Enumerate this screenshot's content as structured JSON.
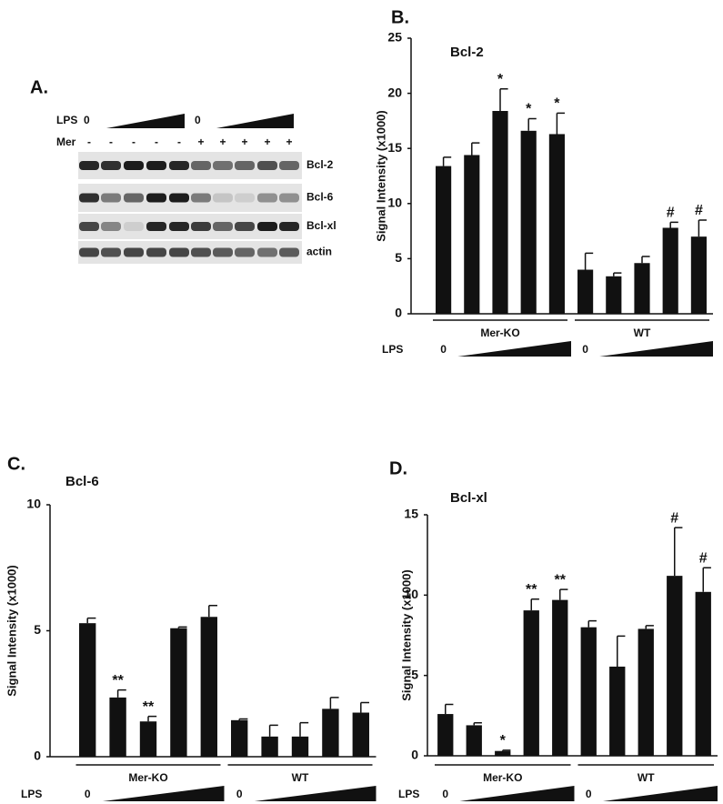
{
  "panel_a": {
    "label": "A.",
    "lps_label": "LPS",
    "lps_zeros": [
      "0",
      "0"
    ],
    "mer_label": "Mer",
    "mer_signs": [
      "-",
      "-",
      "-",
      "-",
      "-",
      "+",
      "+",
      "+",
      "+",
      "+"
    ],
    "bands": [
      "Bcl-2",
      "Bcl-6",
      "Bcl-xl",
      "actin"
    ]
  },
  "chart_data": [
    {
      "type": "bar",
      "panel_label": "B.",
      "title": "Bcl-2",
      "y_label": "Signal Intensity (x1000)",
      "x_label": "LPS",
      "categories": [
        "0",
        null,
        null,
        null,
        null,
        "0",
        null,
        null,
        null,
        null
      ],
      "groups": [
        "Mer-KO",
        "WT"
      ],
      "values": [
        13.4,
        14.4,
        18.4,
        16.6,
        16.3,
        4.0,
        3.4,
        4.6,
        7.8,
        7.0
      ],
      "errors": [
        0.8,
        1.1,
        2.0,
        1.1,
        1.9,
        1.5,
        0.3,
        0.6,
        0.5,
        1.5
      ],
      "markers": [
        null,
        null,
        "*",
        "*",
        "*",
        null,
        null,
        null,
        "#",
        "#"
      ],
      "color": "#111111",
      "ylim": [
        0,
        25
      ],
      "yticks": [
        0,
        5,
        10,
        15,
        20,
        25
      ]
    },
    {
      "type": "bar",
      "panel_label": "C.",
      "title": "Bcl-6",
      "y_label": "Signal Intensity (x1000)",
      "x_label": "LPS",
      "categories": [
        "0",
        null,
        null,
        null,
        null,
        "0",
        null,
        null,
        null,
        null
      ],
      "groups": [
        "Mer-KO",
        "WT"
      ],
      "values": [
        5.3,
        2.35,
        1.4,
        5.1,
        5.55,
        1.45,
        0.8,
        0.8,
        1.9,
        1.75
      ],
      "errors": [
        0.2,
        0.3,
        0.2,
        0.05,
        0.45,
        0.05,
        0.45,
        0.55,
        0.45,
        0.4
      ],
      "markers": [
        null,
        "**",
        "**",
        null,
        null,
        null,
        null,
        null,
        null,
        null
      ],
      "color": "#111111",
      "ylim": [
        0,
        10
      ],
      "yticks": [
        0,
        5,
        10
      ]
    },
    {
      "type": "bar",
      "panel_label": "D.",
      "title": "Bcl-xl",
      "y_label": "Signal Intensity (x1000)",
      "x_label": "LPS",
      "categories": [
        "0",
        null,
        null,
        null,
        null,
        "0",
        null,
        null,
        null,
        null
      ],
      "groups": [
        "Mer-KO",
        "WT"
      ],
      "values": [
        2.6,
        1.9,
        0.3,
        9.05,
        9.7,
        8.0,
        5.55,
        7.9,
        11.2,
        10.2
      ],
      "errors": [
        0.6,
        0.15,
        0.05,
        0.7,
        0.65,
        0.4,
        1.9,
        0.2,
        3.0,
        1.5
      ],
      "markers": [
        null,
        null,
        "*",
        "**",
        "**",
        null,
        null,
        null,
        "#",
        "#"
      ],
      "color": "#111111",
      "ylim": [
        0,
        15
      ],
      "yticks": [
        0,
        5,
        10,
        15
      ]
    }
  ]
}
